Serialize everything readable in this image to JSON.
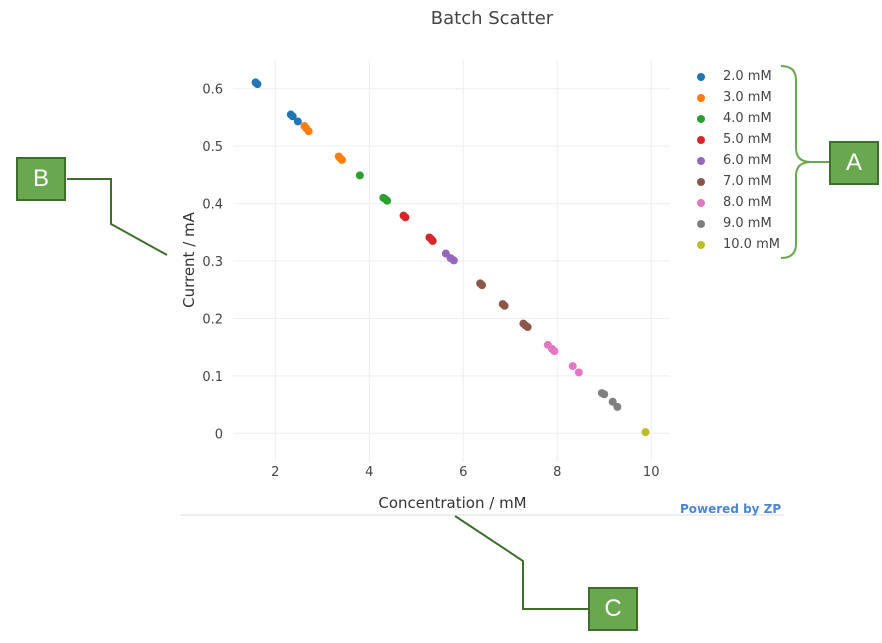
{
  "chart_data": {
    "type": "scatter",
    "title": "Batch Scatter",
    "xlabel": "Concentration / mM",
    "ylabel": "Current / mA",
    "xlim": [
      1.1,
      10.4
    ],
    "ylim": [
      -0.05,
      0.65
    ],
    "xticks": [
      2,
      4,
      6,
      8,
      10
    ],
    "yticks": [
      0,
      0.1,
      0.2,
      0.3,
      0.4,
      0.5,
      0.6
    ],
    "grid": true,
    "legend_position": "right",
    "series": [
      {
        "name": "2.0 mM",
        "color": "#1f77b4",
        "x": [
          1.58,
          1.62,
          2.33,
          2.37,
          2.48
        ],
        "y": [
          0.611,
          0.608,
          0.555,
          0.552,
          0.543
        ]
      },
      {
        "name": "3.0 mM",
        "color": "#ff7f0e",
        "x": [
          2.62,
          2.66,
          2.71,
          3.35,
          3.38,
          3.42
        ],
        "y": [
          0.535,
          0.531,
          0.526,
          0.482,
          0.479,
          0.476
        ]
      },
      {
        "name": "4.0 mM",
        "color": "#2ca02c",
        "x": [
          3.8,
          4.3,
          4.34,
          4.38
        ],
        "y": [
          0.449,
          0.41,
          0.408,
          0.405
        ]
      },
      {
        "name": "5.0 mM",
        "color": "#d62728",
        "x": [
          4.73,
          4.77,
          5.28,
          5.32,
          5.35
        ],
        "y": [
          0.379,
          0.376,
          0.341,
          0.338,
          0.335
        ]
      },
      {
        "name": "6.0 mM",
        "color": "#9467bd",
        "x": [
          5.63,
          5.73,
          5.8
        ],
        "y": [
          0.313,
          0.305,
          0.301
        ]
      },
      {
        "name": "7.0 mM",
        "color": "#8c564b",
        "x": [
          6.36,
          6.4,
          6.84,
          6.88,
          7.28,
          7.32,
          7.37
        ],
        "y": [
          0.261,
          0.258,
          0.225,
          0.222,
          0.191,
          0.188,
          0.185
        ]
      },
      {
        "name": "8.0 mM",
        "color": "#e377c2",
        "x": [
          7.8,
          7.89,
          7.94,
          8.33,
          8.46
        ],
        "y": [
          0.154,
          0.147,
          0.143,
          0.117,
          0.106
        ]
      },
      {
        "name": "9.0 mM",
        "color": "#7f7f7f",
        "x": [
          8.95,
          9.0,
          9.18,
          9.28
        ],
        "y": [
          0.07,
          0.068,
          0.055,
          0.046
        ]
      },
      {
        "name": "10.0 mM",
        "color": "#bcbd22",
        "x": [
          9.88
        ],
        "y": [
          0.002
        ]
      }
    ]
  },
  "powered_by": "Powered by ZP",
  "callouts": {
    "a": "A",
    "b": "B",
    "c": "C"
  },
  "colors": {
    "grid": "#eeeeee",
    "callout_fill": "#6aa84f",
    "callout_line": "#3f6e2b"
  }
}
